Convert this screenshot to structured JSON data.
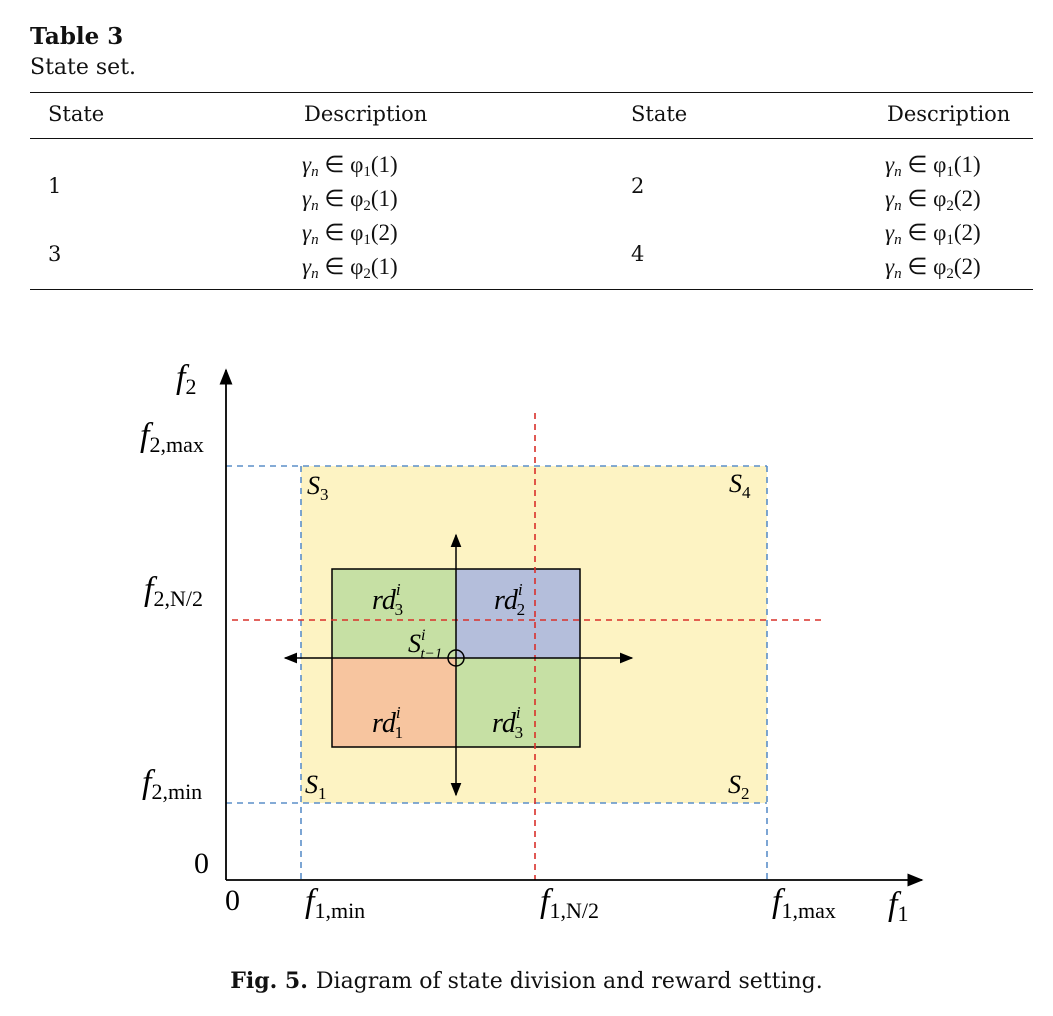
{
  "table": {
    "label": "Table 3",
    "title": "State set.",
    "headers": [
      "State",
      "Description",
      "State",
      "Description"
    ],
    "rows": [
      {
        "state_a": "1",
        "desc_a": [
          [
            "γ",
            "n",
            "∈ φ",
            "1",
            "(1)"
          ],
          [
            "γ",
            "n",
            "∈ φ",
            "2",
            "(1)"
          ]
        ],
        "state_b": "2",
        "desc_b": [
          [
            "γ",
            "n",
            "∈ φ",
            "1",
            "(1)"
          ],
          [
            "γ",
            "n",
            "∈ φ",
            "2",
            "(2)"
          ]
        ]
      },
      {
        "state_a": "3",
        "desc_a": [
          [
            "γ",
            "n",
            "∈ φ",
            "1",
            "(2)"
          ],
          [
            "γ",
            "n",
            "∈ φ",
            "2",
            "(1)"
          ]
        ],
        "state_b": "4",
        "desc_b": [
          [
            "γ",
            "n",
            "∈ φ",
            "1",
            "(2)"
          ],
          [
            "γ",
            "n",
            "∈ φ",
            "2",
            "(2)"
          ]
        ]
      }
    ]
  },
  "figure": {
    "caption_label": "Fig. 5.",
    "caption_text": "Diagram of state division and reward setting.",
    "axes": {
      "x_axis_symbol": "f",
      "x_axis_sub": "1",
      "y_axis_symbol": "f",
      "y_axis_sub": "2",
      "origin_x": "0",
      "origin_y": "0",
      "x_ticks": [
        {
          "base": "f",
          "sub": "1,min"
        },
        {
          "base": "f",
          "sub": "1,N/2"
        },
        {
          "base": "f",
          "sub": "1,max"
        }
      ],
      "y_ticks": [
        {
          "base": "f",
          "sub": "2,max"
        },
        {
          "base": "f",
          "sub": "2,N/2"
        },
        {
          "base": "f",
          "sub": "2,min"
        }
      ]
    },
    "regions": [
      {
        "base": "S",
        "sub": "3"
      },
      {
        "base": "S",
        "sub": "4"
      },
      {
        "base": "S",
        "sub": "1"
      },
      {
        "base": "S",
        "sub": "2"
      }
    ],
    "reward_cells": [
      {
        "base": "rd",
        "sup": "i",
        "sub": "3",
        "color": "#c6e0a4"
      },
      {
        "base": "rd",
        "sup": "i",
        "sub": "2",
        "color": "#b4bedb"
      },
      {
        "base": "rd",
        "sup": "i",
        "sub": "1",
        "color": "#f7c59f"
      },
      {
        "base": "rd",
        "sup": "i",
        "sub": "3",
        "color": "#c6e0a4"
      }
    ],
    "current_state": {
      "base": "S",
      "sup": "i",
      "sub": "t−1"
    },
    "colors": {
      "state_space_fill": "#fdf3c3",
      "boundary_dash": "#5b8fc9",
      "midline_dash": "#d9302a"
    }
  }
}
